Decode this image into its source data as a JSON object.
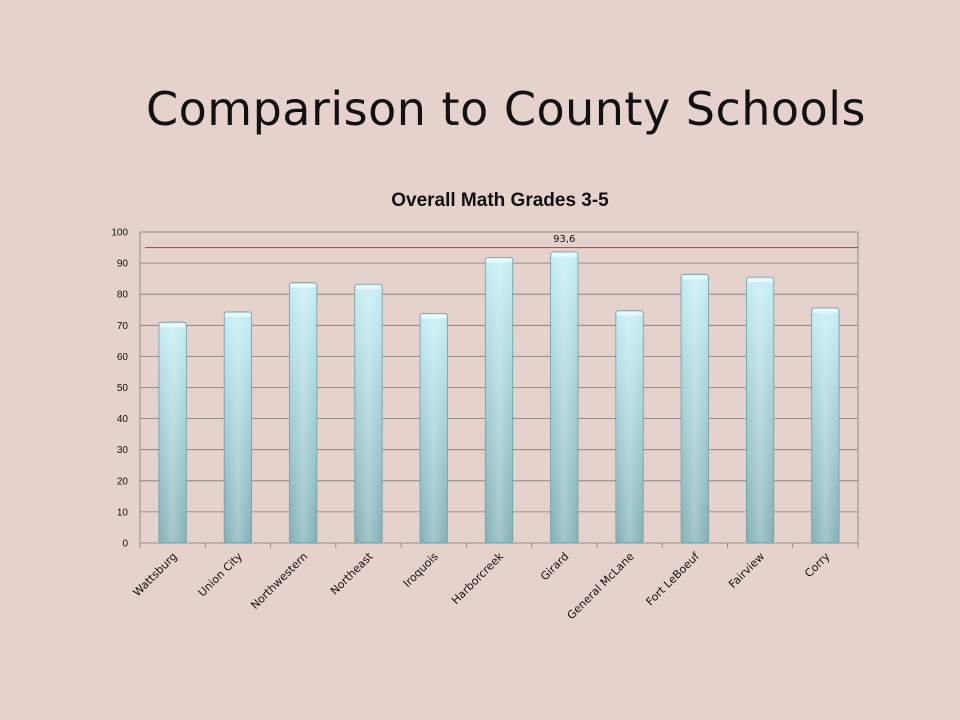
{
  "slide": {
    "title": "Comparison to County Schools"
  },
  "chart_data": {
    "type": "bar",
    "title": "Overall Math Grades 3-5",
    "xlabel": "",
    "ylabel": "",
    "ylim": [
      0,
      100
    ],
    "yticks": [
      0,
      10,
      20,
      30,
      40,
      50,
      60,
      70,
      80,
      90,
      100
    ],
    "grid": true,
    "categories": [
      "Wattsburg",
      "Union City",
      "Northwestern",
      "Northeast",
      "Iroquois",
      "Harborcreek",
      "Girard",
      "General McLane",
      "Fort LeBoeuf",
      "Fairview",
      "Corry"
    ],
    "values": [
      71,
      74.3,
      83.7,
      83.2,
      73.8,
      91.8,
      93.6,
      74.7,
      86.4,
      85.5,
      75.6
    ],
    "data_labels": [
      {
        "category": "Girard",
        "text": "93,6"
      }
    ],
    "reference_line": {
      "value": 95,
      "color": "#e03a2a"
    },
    "bar_color_top": "#c4eef4",
    "bar_color_bottom": "#86b3b8"
  }
}
